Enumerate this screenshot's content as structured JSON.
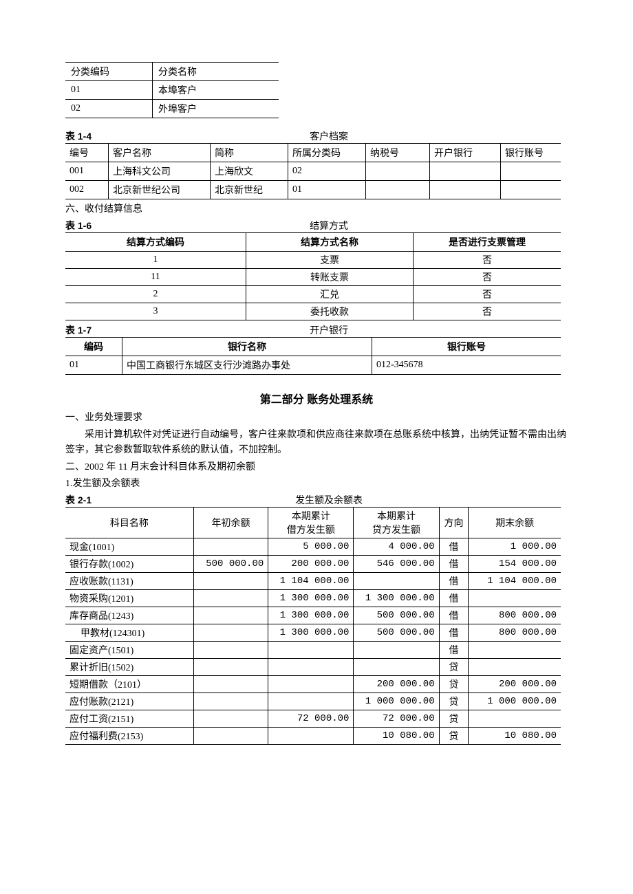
{
  "classif": {
    "headers": [
      "分类编码",
      "分类名称"
    ],
    "rows": [
      [
        "01",
        "本埠客户"
      ],
      [
        "02",
        "外埠客户"
      ]
    ]
  },
  "table14": {
    "num": "表 1-4",
    "title": "客户档案",
    "headers": [
      "编号",
      "客户名称",
      "简称",
      "所属分类码",
      "纳税号",
      "开户银行",
      "银行账号"
    ],
    "rows": [
      [
        "001",
        "上海科文公司",
        "上海欣文",
        "02",
        "",
        "",
        ""
      ],
      [
        "002",
        "北京新世纪公司",
        "北京新世纪",
        "01",
        "",
        "",
        ""
      ]
    ]
  },
  "section6": "六、收付结算信息",
  "table16": {
    "num": "表 1-6",
    "title": "结算方式",
    "headers": [
      "结算方式编码",
      "结算方式名称",
      "是否进行支票管理"
    ],
    "rows": [
      [
        "1",
        "支票",
        "否"
      ],
      [
        "11",
        "转账支票",
        "否"
      ],
      [
        "2",
        "汇兑",
        "否"
      ],
      [
        "3",
        "委托收款",
        "否"
      ]
    ]
  },
  "table17": {
    "num": "表 1-7",
    "title": "开户银行",
    "headers": [
      "编码",
      "银行名称",
      "银行账号"
    ],
    "rows": [
      [
        "01",
        "中国工商银行东城区支行沙滩路办事处",
        "012-345678"
      ]
    ]
  },
  "part2": {
    "title": "第二部分    账务处理系统",
    "s1": "一、业务处理要求",
    "s1body": "采用计算机软件对凭证进行自动编号，客户往来款项和供应商往来款项在总账系统中核算，出纳凭证暂不需由出纳签字，其它参数暂取软件系统的默认值，不加控制。",
    "s2": "二、2002 年 11 月末会计科目体系及期初余额",
    "s2a": "1.发生额及余额表"
  },
  "table21": {
    "num": "表 2-1",
    "title": "发生额及余额表",
    "headers": {
      "name": "科目名称",
      "begin": "年初余额",
      "debit": "本期累计\n借方发生额",
      "credit": "本期累计\n贷方发生额",
      "dir": "方向",
      "end": "期末余额"
    },
    "rows": [
      {
        "name": "现金(1001)",
        "sub": false,
        "begin": "",
        "debit": "5 000.00",
        "credit": "4 000.00",
        "dir": "借",
        "end": "1 000.00"
      },
      {
        "name": "银行存款(1002)",
        "sub": false,
        "begin": "500 000.00",
        "debit": "200 000.00",
        "credit": "546 000.00",
        "dir": "借",
        "end": "154 000.00"
      },
      {
        "name": "应收账款(1131)",
        "sub": false,
        "begin": "",
        "debit": "1 104 000.00",
        "credit": "",
        "dir": "借",
        "end": "1 104 000.00"
      },
      {
        "name": "物资采购(1201)",
        "sub": false,
        "begin": "",
        "debit": "1 300 000.00",
        "credit": "1 300 000.00",
        "dir": "借",
        "end": ""
      },
      {
        "name": "库存商品(1243)",
        "sub": false,
        "begin": "",
        "debit": "1 300 000.00",
        "credit": "500 000.00",
        "dir": "借",
        "end": "800 000.00"
      },
      {
        "name": "甲教材(124301)",
        "sub": true,
        "begin": "",
        "debit": "1 300 000.00",
        "credit": "500 000.00",
        "dir": "借",
        "end": "800 000.00"
      },
      {
        "name": "固定资产(1501)",
        "sub": false,
        "begin": "",
        "debit": "",
        "credit": "",
        "dir": "借",
        "end": ""
      },
      {
        "name": "累计折旧(1502)",
        "sub": false,
        "begin": "",
        "debit": "",
        "credit": "",
        "dir": "贷",
        "end": ""
      },
      {
        "name": "短期借款（2101）",
        "sub": false,
        "begin": "",
        "debit": "",
        "credit": "200 000.00",
        "dir": "贷",
        "end": "200 000.00"
      },
      {
        "name": "应付账款(2121)",
        "sub": false,
        "begin": "",
        "debit": "",
        "credit": "1 000 000.00",
        "dir": "贷",
        "end": "1 000 000.00"
      },
      {
        "name": "应付工资(2151)",
        "sub": false,
        "begin": "",
        "debit": "72 000.00",
        "credit": "72 000.00",
        "dir": "贷",
        "end": ""
      },
      {
        "name": "应付福利费(2153)",
        "sub": false,
        "begin": "",
        "debit": "",
        "credit": "10 080.00",
        "dir": "贷",
        "end": "10 080.00"
      }
    ],
    "widths": {
      "name": 170,
      "begin": 95,
      "debit": 110,
      "credit": 110,
      "dir": 32,
      "end": 120
    }
  }
}
